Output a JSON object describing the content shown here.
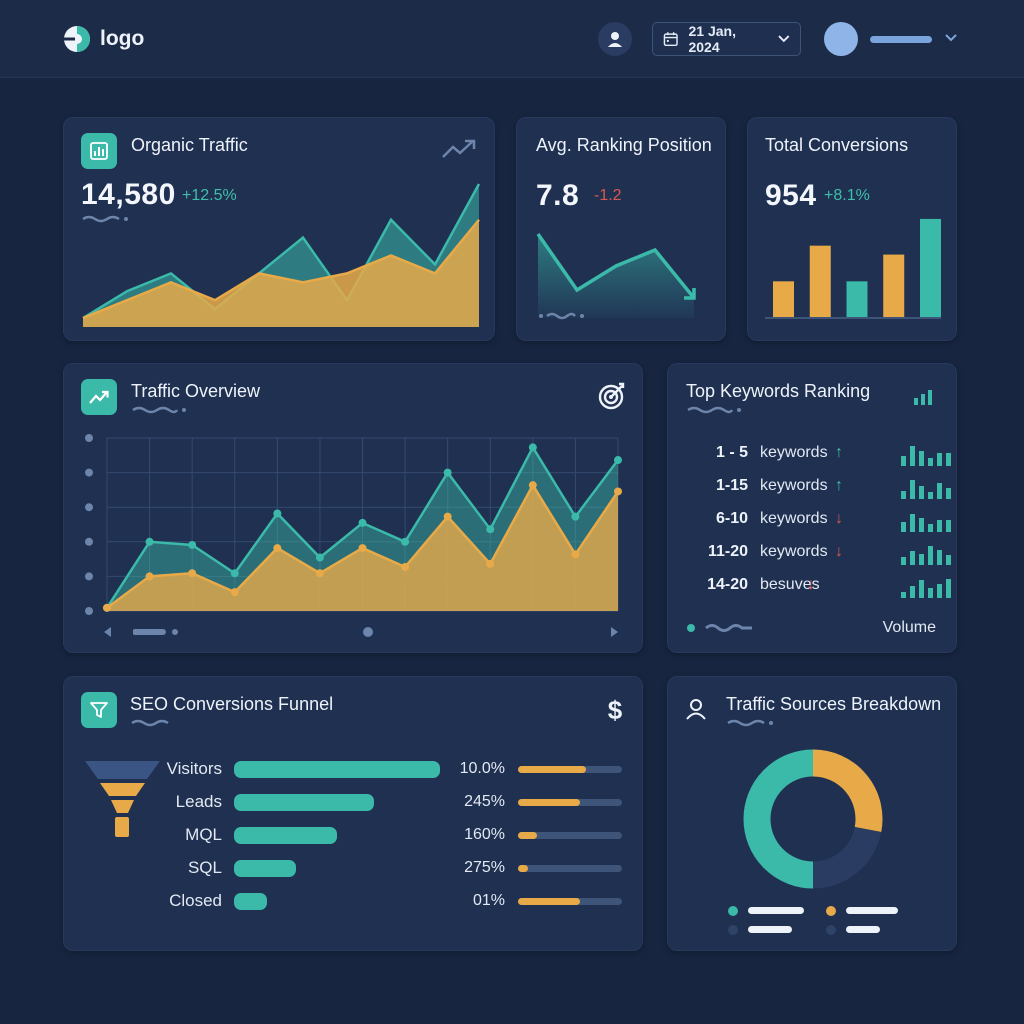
{
  "header": {
    "logo_text": "logo",
    "date": "21 Jan, 2024"
  },
  "organic_traffic": {
    "title": "Organic Traffic",
    "value": "14,580",
    "delta": "+12.5%",
    "chart_data": {
      "type": "area",
      "series": [
        {
          "color": "#3bbaa9",
          "values": [
            1,
            4,
            6,
            2,
            6,
            10,
            3,
            12,
            7,
            16
          ]
        },
        {
          "color": "#e8aa48",
          "values": [
            1,
            3,
            5,
            3,
            6,
            5,
            6,
            8,
            6,
            12
          ]
        }
      ],
      "ylim": [
        0,
        16
      ]
    }
  },
  "ranking": {
    "title": "Avg. Ranking Position",
    "value": "7.8",
    "delta": "-1.2",
    "chart_data": {
      "type": "line",
      "values": [
        10,
        3,
        6,
        8,
        2
      ],
      "ylim": [
        0,
        10
      ]
    }
  },
  "conversions": {
    "title": "Total Conversions",
    "value": "954",
    "delta": "+8.1%",
    "chart_data": {
      "type": "bar",
      "values": [
        4,
        8,
        4,
        7,
        11
      ],
      "colors": [
        "#e8aa48",
        "#e8aa48",
        "#3bbaa9",
        "#e8aa48",
        "#3bbaa9"
      ],
      "ylim": [
        0,
        12
      ]
    }
  },
  "traffic_overview": {
    "title": "Traffic Overview",
    "chart_data": {
      "type": "area",
      "series": [
        {
          "color": "#3bbaa9",
          "values": [
            1,
            22,
            21,
            12,
            31,
            17,
            28,
            22,
            44,
            26,
            52,
            30,
            48
          ]
        },
        {
          "color": "#e8aa48",
          "values": [
            1,
            11,
            12,
            6,
            20,
            12,
            20,
            14,
            30,
            15,
            40,
            18,
            38
          ]
        }
      ],
      "ylim": [
        0,
        55
      ]
    }
  },
  "keywords": {
    "title": "Top Keywords Ranking",
    "footer": "Volume",
    "rows": [
      {
        "range": "1 - 5",
        "label": "keywords",
        "trend": "↑"
      },
      {
        "range": "1-15",
        "label": "keywords",
        "trend": "↑"
      },
      {
        "range": "6-10",
        "label": "keywords",
        "trend": "↓"
      },
      {
        "range": "11-20",
        "label": "keywords",
        "trend": "↓"
      },
      {
        "range": "14-20",
        "label": "besuves",
        "trend": "↓"
      }
    ]
  },
  "funnel": {
    "title": "SEO Conversions Funnel",
    "stages": [
      {
        "label": "Visitors",
        "pct": "10.0%",
        "bar": 1.0,
        "fill": 0.65
      },
      {
        "label": "Leads",
        "pct": "245%",
        "bar": 0.68,
        "fill": 0.6
      },
      {
        "label": "MQL",
        "pct": "160%",
        "bar": 0.5,
        "fill": 0.18
      },
      {
        "label": "SQL",
        "pct": "275%",
        "bar": 0.3,
        "fill": 0.1
      },
      {
        "label": "Closed",
        "pct": "01%",
        "bar": 0.16,
        "fill": 0.6
      }
    ]
  },
  "sources": {
    "title": "Traffic Sources Breakdown",
    "chart_data": {
      "type": "pie",
      "values": [
        50,
        28,
        22
      ],
      "colors": [
        "#3bbaa9",
        "#e8aa48",
        "#2a3c61"
      ]
    }
  }
}
